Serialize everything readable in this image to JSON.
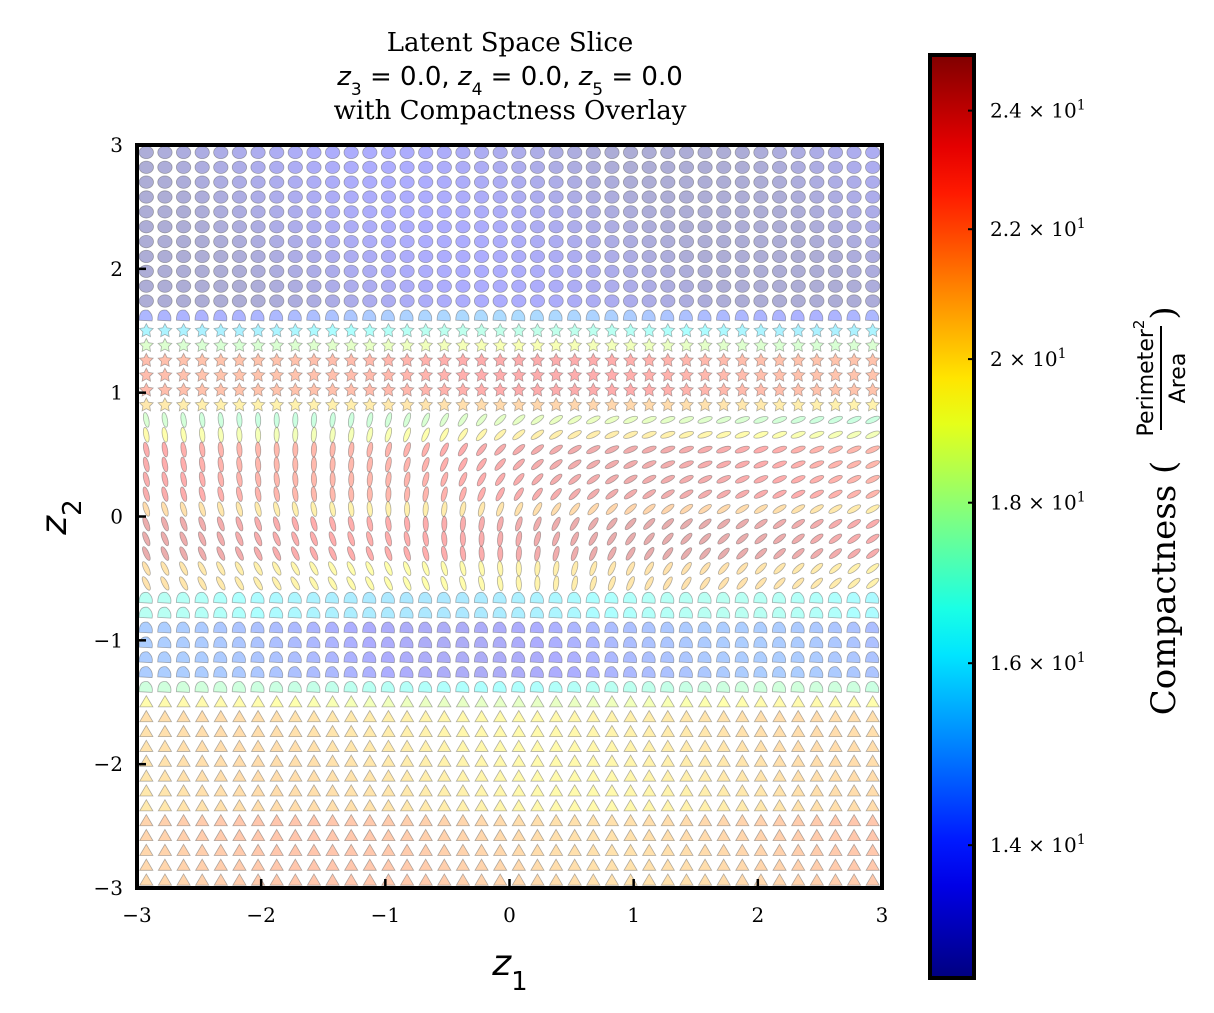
{
  "chart_data": {
    "type": "scatter",
    "title_lines": [
      "Latent Space Slice",
      "z3 = 0.0, z4 = 0.0, z5 = 0.0",
      "with Compactness Overlay"
    ],
    "title_parts": {
      "line2": [
        {
          "var": "z",
          "sub": "3",
          "rest": " = 0.0, "
        },
        {
          "var": "z",
          "sub": "4",
          "rest": " = 0.0, "
        },
        {
          "var": "z",
          "sub": "5",
          "rest": " = 0.0"
        }
      ]
    },
    "xlabel": {
      "var": "z",
      "sub": "1"
    },
    "ylabel": {
      "var": "z",
      "sub": "2"
    },
    "xlim": [
      -3,
      3
    ],
    "ylim": [
      -3,
      3
    ],
    "x_ticks": [
      -3,
      -2,
      -1,
      0,
      1,
      2,
      3
    ],
    "y_ticks": [
      -3,
      -2,
      -1,
      0,
      1,
      2,
      3
    ],
    "x_tick_labels": [
      "−3",
      "−2",
      "−1",
      "0",
      "1",
      "2",
      "3"
    ],
    "y_tick_labels": [
      "−3",
      "−2",
      "−1",
      "0",
      "1",
      "2",
      "3"
    ],
    "grid": false,
    "colorbar": {
      "label": "Compactness",
      "fraction_numerator": "Perimeter",
      "fraction_numerator_sup": "2",
      "fraction_denominator": "Area",
      "scale": "log",
      "range": [
        12.7,
        25
      ],
      "ticks": [
        14,
        16,
        18,
        20,
        22,
        24
      ],
      "tick_labels": [
        {
          "mant": "1.4",
          "exp": "1"
        },
        {
          "mant": "1.6",
          "exp": "1"
        },
        {
          "mant": "1.8",
          "exp": "1"
        },
        {
          "mant": "2",
          "exp": "1"
        },
        {
          "mant": "2.2",
          "exp": "1"
        },
        {
          "mant": "2.4",
          "exp": "1"
        }
      ],
      "colormap": "jet"
    },
    "grid_shape": {
      "cols": 40,
      "rows": 50
    },
    "shape_bands": [
      {
        "y_from": 1.7,
        "y_to": 3.0,
        "shape": "circle",
        "compactness": 13.2,
        "alpha": 0.32
      },
      {
        "y_from": 1.6,
        "y_to": 1.7,
        "shape": "blob",
        "compactness": 14.6,
        "alpha": 0.32
      },
      {
        "y_from": 1.48,
        "y_to": 1.6,
        "shape": "star",
        "compactness": 16.5,
        "alpha": 0.32
      },
      {
        "y_from": 1.38,
        "y_to": 1.48,
        "shape": "star",
        "compactness": 18.5,
        "alpha": 0.32
      },
      {
        "y_from": 1.02,
        "y_to": 1.38,
        "shape": "star",
        "compactness": 22.5,
        "alpha": 0.32
      },
      {
        "y_from": 0.86,
        "y_to": 1.02,
        "shape": "star",
        "compactness": 20.5,
        "alpha": 0.32
      },
      {
        "y_from": 0.7,
        "y_to": 0.86,
        "shape": "ellipse",
        "compactness": 18.0,
        "alpha": 0.32
      },
      {
        "y_from": 0.55,
        "y_to": 0.7,
        "shape": "ellipse",
        "compactness": 19.5,
        "alpha": 0.32
      },
      {
        "y_from": 0.12,
        "y_to": 0.55,
        "shape": "ellipse",
        "compactness": 23.0,
        "alpha": 0.32
      },
      {
        "y_from": -0.02,
        "y_to": 0.12,
        "shape": "ellipse",
        "compactness": 20.5,
        "alpha": 0.32
      },
      {
        "y_from": -0.35,
        "y_to": -0.02,
        "shape": "ellipse",
        "compactness": 23.5,
        "alpha": 0.32
      },
      {
        "y_from": -0.62,
        "y_to": -0.35,
        "shape": "ellipse",
        "compactness": 20.0,
        "alpha": 0.32
      },
      {
        "y_from": -0.8,
        "y_to": -0.62,
        "shape": "blob",
        "compactness": 16.2,
        "alpha": 0.32
      },
      {
        "y_from": -1.3,
        "y_to": -0.8,
        "shape": "blob",
        "compactness": 14.2,
        "alpha": 0.32
      },
      {
        "y_from": -1.45,
        "y_to": -1.3,
        "shape": "blob",
        "compactness": 17.0,
        "alpha": 0.32
      },
      {
        "y_from": -1.6,
        "y_to": -1.45,
        "shape": "triangle",
        "compactness": 19.0,
        "alpha": 0.32
      },
      {
        "y_from": -2.4,
        "y_to": -1.6,
        "shape": "triangle",
        "compactness": 20.2,
        "alpha": 0.32
      },
      {
        "y_from": -3.0,
        "y_to": -2.4,
        "shape": "triangle",
        "compactness": 21.2,
        "alpha": 0.32
      }
    ]
  }
}
